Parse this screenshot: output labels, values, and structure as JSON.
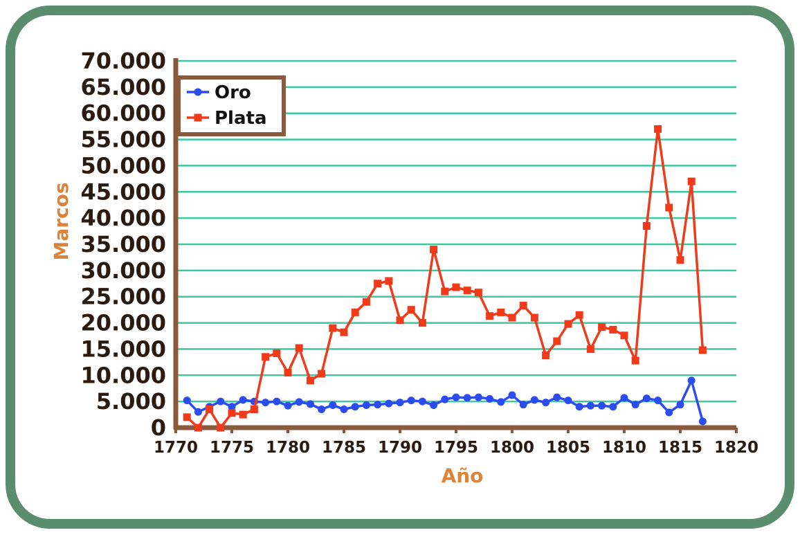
{
  "chart_data": {
    "type": "line",
    "xlabel": "Año",
    "ylabel": "Marcos",
    "xlim": [
      1770,
      1820
    ],
    "ylim": [
      0,
      70000
    ],
    "x_ticks": [
      "1770",
      "1775",
      "1780",
      "1785",
      "1790",
      "1795",
      "1800",
      "1805",
      "1810",
      "1815",
      "1820"
    ],
    "y_ticks": [
      "0",
      "5.000",
      "10.000",
      "15.000",
      "20.000",
      "25.000",
      "30.000",
      "35.000",
      "40.000",
      "45.000",
      "50.000",
      "55.000",
      "60.000",
      "65.000",
      "70.000"
    ],
    "grid": true,
    "legend_position": "top-left",
    "colors": {
      "axis": "#8b5a3c",
      "grid": "#3cc8a0",
      "axis_label": "#d9843a",
      "frame": "#5a8c6e",
      "oro": "#2b4cf0",
      "plata": "#f03a1a"
    },
    "series": [
      {
        "name": "Oro",
        "marker": "circle",
        "x": [
          1771,
          1772,
          1773,
          1774,
          1775,
          1776,
          1777,
          1778,
          1779,
          1780,
          1781,
          1782,
          1783,
          1784,
          1785,
          1786,
          1787,
          1788,
          1789,
          1790,
          1791,
          1792,
          1793,
          1794,
          1795,
          1796,
          1797,
          1798,
          1799,
          1800,
          1801,
          1802,
          1803,
          1804,
          1805,
          1806,
          1807,
          1808,
          1809,
          1810,
          1811,
          1812,
          1813,
          1814,
          1815,
          1816,
          1817
        ],
        "values": [
          5200,
          3000,
          4000,
          5000,
          4000,
          5300,
          5000,
          4800,
          5000,
          4200,
          4900,
          4500,
          3500,
          4300,
          3500,
          4000,
          4300,
          4400,
          4600,
          4800,
          5200,
          5000,
          4300,
          5400,
          5800,
          5700,
          5800,
          5500,
          4900,
          6200,
          4400,
          5300,
          4800,
          5800,
          5200,
          4000,
          4200,
          4200,
          4000,
          5700,
          4400,
          5600,
          5200,
          2900,
          4400,
          9000,
          1200
        ]
      },
      {
        "name": "Plata",
        "marker": "square",
        "x": [
          1771,
          1772,
          1773,
          1774,
          1775,
          1776,
          1777,
          1778,
          1779,
          1780,
          1781,
          1782,
          1783,
          1784,
          1785,
          1786,
          1787,
          1788,
          1789,
          1790,
          1791,
          1792,
          1793,
          1794,
          1795,
          1796,
          1797,
          1798,
          1799,
          1800,
          1801,
          1802,
          1803,
          1804,
          1805,
          1806,
          1807,
          1808,
          1809,
          1810,
          1811,
          1812,
          1813,
          1814,
          1815,
          1816,
          1817
        ],
        "values": [
          2000,
          0,
          3500,
          0,
          2800,
          2500,
          3500,
          13500,
          14200,
          10500,
          15200,
          9000,
          10300,
          19000,
          18200,
          22000,
          24000,
          27500,
          28000,
          20500,
          22500,
          20000,
          34000,
          26000,
          26800,
          26200,
          25800,
          21300,
          22000,
          21000,
          23300,
          21000,
          13800,
          16500,
          19800,
          21500,
          15000,
          19200,
          18700,
          17600,
          12800,
          38500,
          57000,
          42000,
          32000,
          47000,
          14800
        ]
      }
    ]
  }
}
